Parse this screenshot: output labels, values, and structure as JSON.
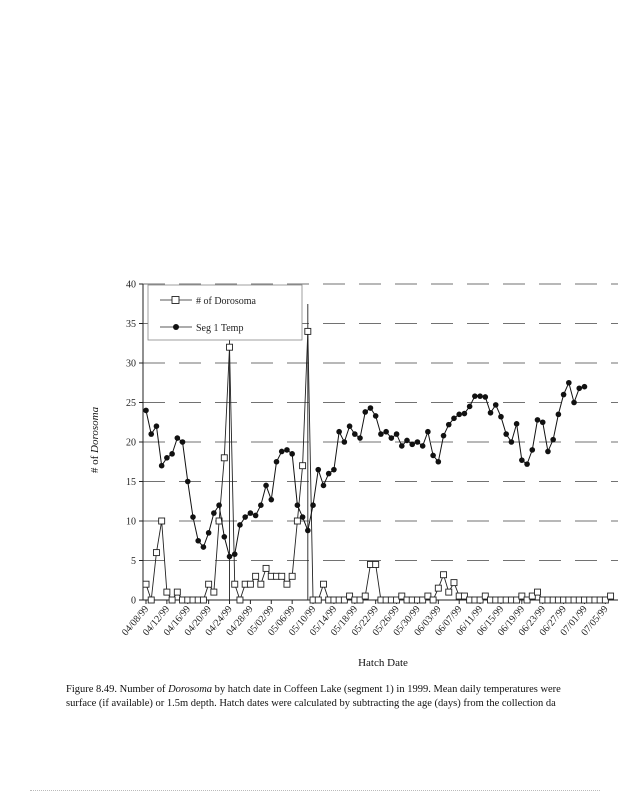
{
  "caption": {
    "figure_label": "Figure 8.49.",
    "text_before_italic": "Number of",
    "italic_word": "Dorosoma",
    "text_after_italic": "by hatch date in Coffeen Lake (segment 1) in 1999.  Mean daily temperatures were",
    "line2": "surface (if available) or 1.5m depth.  Hatch dates were calculated by subtracting the age (days) from the collection da"
  },
  "chart_data": {
    "type": "line",
    "xlabel": "Hatch Date",
    "ylabel_prefix": "# of",
    "ylabel_italic": "Dorosoma",
    "ylim": [
      0,
      40
    ],
    "yticks": [
      0,
      5,
      10,
      15,
      20,
      25,
      30,
      35,
      40
    ],
    "xlim": [
      0,
      90
    ],
    "xtick_labels": [
      "04/08/99",
      "04/12/99",
      "04/16/99",
      "04/20/99",
      "04/24/99",
      "04/28/99",
      "05/02/99",
      "05/06/99",
      "05/10/99",
      "05/14/99",
      "05/18/99",
      "05/22/99",
      "05/26/99",
      "05/30/99",
      "06/03/99",
      "06/07/99",
      "06/11/99",
      "06/15/99",
      "06/19/99",
      "06/23/99",
      "06/27/99",
      "07/01/99",
      "07/05/99"
    ],
    "xtick_positions": [
      0,
      4,
      8,
      12,
      16,
      20,
      24,
      28,
      32,
      36,
      40,
      44,
      48,
      52,
      56,
      60,
      64,
      68,
      72,
      76,
      80,
      84,
      88
    ],
    "grid": "dashed horizontal",
    "legend_placement": "top-left",
    "series": [
      {
        "name": "# of Dorosoma",
        "marker": "square-open",
        "points": [
          [
            0,
            2
          ],
          [
            1,
            0
          ],
          [
            2,
            6
          ],
          [
            3,
            10
          ],
          [
            4,
            1
          ],
          [
            5,
            0
          ],
          [
            6,
            1
          ],
          [
            7,
            0
          ],
          [
            8,
            0
          ],
          [
            9,
            0
          ],
          [
            10,
            0
          ],
          [
            11,
            0
          ],
          [
            12,
            2
          ],
          [
            13,
            1
          ],
          [
            14,
            10
          ],
          [
            15,
            18
          ],
          [
            16,
            32
          ],
          [
            17,
            2
          ],
          [
            18,
            0
          ],
          [
            19,
            2
          ],
          [
            20,
            2
          ],
          [
            21,
            3
          ],
          [
            22,
            2
          ],
          [
            23,
            4
          ],
          [
            24,
            3
          ],
          [
            25,
            3
          ],
          [
            26,
            3
          ],
          [
            27,
            2
          ],
          [
            28,
            3
          ],
          [
            29,
            10
          ],
          [
            30,
            17
          ],
          [
            31,
            34
          ],
          [
            32,
            0
          ],
          [
            33,
            0
          ],
          [
            34,
            2
          ],
          [
            35,
            0
          ],
          [
            36,
            0
          ],
          [
            37,
            0
          ],
          [
            38,
            0
          ],
          [
            39,
            0.5
          ],
          [
            40,
            0
          ],
          [
            41,
            0
          ],
          [
            42,
            0.5
          ],
          [
            43,
            4.5
          ],
          [
            44,
            4.5
          ],
          [
            45,
            0
          ],
          [
            46,
            0
          ],
          [
            47,
            0
          ],
          [
            48,
            0
          ],
          [
            49,
            0.5
          ],
          [
            50,
            0
          ],
          [
            51,
            0
          ],
          [
            52,
            0
          ],
          [
            53,
            0
          ],
          [
            54,
            0.5
          ],
          [
            55,
            0
          ],
          [
            56,
            1.5
          ],
          [
            57,
            3.2
          ],
          [
            58,
            1
          ],
          [
            59,
            2.2
          ],
          [
            60,
            0.5
          ],
          [
            61,
            0.5
          ],
          [
            62,
            0
          ],
          [
            63,
            0
          ],
          [
            64,
            0
          ],
          [
            65,
            0.5
          ],
          [
            66,
            0
          ],
          [
            67,
            0
          ],
          [
            68,
            0
          ],
          [
            69,
            0
          ],
          [
            70,
            0
          ],
          [
            71,
            0
          ],
          [
            72,
            0.5
          ],
          [
            73,
            0
          ],
          [
            74,
            0.5
          ],
          [
            75,
            1
          ],
          [
            76,
            0
          ],
          [
            77,
            0
          ],
          [
            78,
            0
          ],
          [
            79,
            0
          ],
          [
            80,
            0
          ],
          [
            81,
            0
          ],
          [
            82,
            0
          ],
          [
            83,
            0
          ],
          [
            84,
            0
          ],
          [
            85,
            0
          ],
          [
            86,
            0
          ],
          [
            87,
            0
          ],
          [
            88,
            0
          ],
          [
            89,
            0.5
          ]
        ]
      },
      {
        "name": "Seg 1 Temp",
        "marker": "circle-filled",
        "points": [
          [
            0,
            24
          ],
          [
            1,
            21
          ],
          [
            2,
            22
          ],
          [
            3,
            17
          ],
          [
            4,
            18
          ],
          [
            5,
            18.5
          ],
          [
            6,
            20.5
          ],
          [
            7,
            20
          ],
          [
            8,
            15
          ],
          [
            9,
            10.5
          ],
          [
            10,
            7.5
          ],
          [
            11,
            6.7
          ],
          [
            12,
            8.5
          ],
          [
            13,
            11
          ],
          [
            14,
            12
          ],
          [
            15,
            8
          ],
          [
            16,
            5.5
          ],
          [
            17,
            5.8
          ],
          [
            18,
            9.5
          ],
          [
            19,
            10.5
          ],
          [
            20,
            11
          ],
          [
            21,
            10.7
          ],
          [
            22,
            12
          ],
          [
            23,
            14.5
          ],
          [
            24,
            12.7
          ],
          [
            25,
            17.5
          ],
          [
            26,
            18.8
          ],
          [
            27,
            19
          ],
          [
            28,
            18.5
          ],
          [
            29,
            12
          ],
          [
            30,
            10.5
          ],
          [
            31,
            8.8
          ],
          [
            32,
            12
          ],
          [
            33,
            16.5
          ],
          [
            34,
            14.5
          ],
          [
            35,
            16
          ],
          [
            36,
            16.5
          ],
          [
            37,
            21.3
          ],
          [
            38,
            20
          ],
          [
            39,
            22
          ],
          [
            40,
            21
          ],
          [
            41,
            20.5
          ],
          [
            42,
            23.8
          ],
          [
            43,
            24.3
          ],
          [
            44,
            23.3
          ],
          [
            45,
            21
          ],
          [
            46,
            21.3
          ],
          [
            47,
            20.5
          ],
          [
            48,
            21
          ],
          [
            49,
            19.5
          ],
          [
            50,
            20.2
          ],
          [
            51,
            19.7
          ],
          [
            52,
            20
          ],
          [
            53,
            19.5
          ],
          [
            54,
            21.3
          ],
          [
            55,
            18.3
          ],
          [
            56,
            17.5
          ],
          [
            57,
            20.8
          ],
          [
            58,
            22.2
          ],
          [
            59,
            23
          ],
          [
            60,
            23.5
          ],
          [
            61,
            23.6
          ],
          [
            62,
            24.5
          ],
          [
            63,
            25.8
          ],
          [
            64,
            25.8
          ],
          [
            65,
            25.7
          ],
          [
            66,
            23.7
          ],
          [
            67,
            24.7
          ],
          [
            68,
            23.2
          ],
          [
            69,
            21
          ],
          [
            70,
            20
          ],
          [
            71,
            22.3
          ],
          [
            72,
            17.7
          ],
          [
            73,
            17.2
          ],
          [
            74,
            19
          ],
          [
            75,
            22.8
          ],
          [
            76,
            22.5
          ],
          [
            77,
            18.8
          ],
          [
            78,
            20.3
          ],
          [
            79,
            23.5
          ],
          [
            80,
            26
          ],
          [
            81,
            27.5
          ],
          [
            82,
            25
          ],
          [
            83,
            26.8
          ],
          [
            84,
            27
          ]
        ]
      }
    ],
    "vertical_lines_x": [
      16,
      31
    ]
  }
}
